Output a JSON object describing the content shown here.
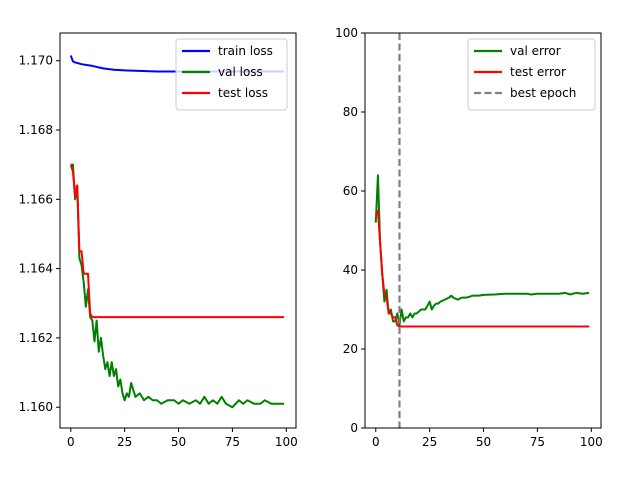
{
  "chart_data": [
    {
      "type": "line",
      "title": "",
      "xlabel": "",
      "ylabel": "",
      "xlim": [
        -5,
        104.5
      ],
      "ylim": [
        1.1594,
        1.1708
      ],
      "xticks": [
        0,
        25,
        50,
        75,
        100
      ],
      "yticks": [
        1.16,
        1.162,
        1.164,
        1.166,
        1.168,
        1.17
      ],
      "ytick_labels": [
        "1.160",
        "1.162",
        "1.164",
        "1.166",
        "1.168",
        "1.170"
      ],
      "legend_position": "top-right",
      "grid": false,
      "series": [
        {
          "name": "train loss",
          "color": "#0000ff",
          "points": [
            [
              0,
              1.17015
            ],
            [
              1,
              1.16998
            ],
            [
              2,
              1.16995
            ],
            [
              5,
              1.1699
            ],
            [
              10,
              1.16985
            ],
            [
              15,
              1.16978
            ],
            [
              20,
              1.16974
            ],
            [
              25,
              1.16972
            ],
            [
              30,
              1.16971
            ],
            [
              35,
              1.1697
            ],
            [
              40,
              1.16969
            ],
            [
              50,
              1.16969
            ],
            [
              60,
              1.16969
            ],
            [
              75,
              1.16969
            ],
            [
              99,
              1.16969
            ]
          ]
        },
        {
          "name": "val loss",
          "color": "#008000",
          "points": [
            [
              0,
              1.167
            ],
            [
              1,
              1.167
            ],
            [
              2,
              1.166
            ],
            [
              3,
              1.1664
            ],
            [
              4,
              1.1643
            ],
            [
              5,
              1.1641
            ],
            [
              6,
              1.1636
            ],
            [
              7,
              1.1629
            ],
            [
              8,
              1.1634
            ],
            [
              9,
              1.1626
            ],
            [
              10,
              1.1625
            ],
            [
              11,
              1.1619
            ],
            [
              12,
              1.1625
            ],
            [
              13,
              1.1616
            ],
            [
              14,
              1.162
            ],
            [
              15,
              1.1615
            ],
            [
              16,
              1.1611
            ],
            [
              17,
              1.1613
            ],
            [
              18,
              1.1609
            ],
            [
              19,
              1.1613
            ],
            [
              20,
              1.1609
            ],
            [
              21,
              1.1611
            ],
            [
              22,
              1.1606
            ],
            [
              23,
              1.1608
            ],
            [
              24,
              1.1604
            ],
            [
              25,
              1.1602
            ],
            [
              26,
              1.1604
            ],
            [
              27,
              1.1603
            ],
            [
              28,
              1.1607
            ],
            [
              29,
              1.1605
            ],
            [
              30,
              1.1603
            ],
            [
              32,
              1.1604
            ],
            [
              34,
              1.1602
            ],
            [
              36,
              1.1603
            ],
            [
              38,
              1.1602
            ],
            [
              40,
              1.1602
            ],
            [
              42,
              1.1601
            ],
            [
              45,
              1.1602
            ],
            [
              48,
              1.1602
            ],
            [
              50,
              1.1601
            ],
            [
              52,
              1.1602
            ],
            [
              55,
              1.1601
            ],
            [
              58,
              1.1602
            ],
            [
              60,
              1.1601
            ],
            [
              62,
              1.1603
            ],
            [
              64,
              1.1601
            ],
            [
              66,
              1.1602
            ],
            [
              68,
              1.1601
            ],
            [
              70,
              1.1603
            ],
            [
              72,
              1.1601
            ],
            [
              75,
              1.16
            ],
            [
              78,
              1.1602
            ],
            [
              80,
              1.1601
            ],
            [
              82,
              1.1602
            ],
            [
              85,
              1.1601
            ],
            [
              88,
              1.1601
            ],
            [
              90,
              1.1602
            ],
            [
              93,
              1.1601
            ],
            [
              96,
              1.1601
            ],
            [
              99,
              1.1601
            ]
          ]
        },
        {
          "name": "test loss",
          "color": "#ff0000",
          "points": [
            [
              0,
              1.167
            ],
            [
              1,
              1.1668
            ],
            [
              2,
              1.1661
            ],
            [
              3,
              1.1664
            ],
            [
              4,
              1.1645
            ],
            [
              5,
              1.1645
            ],
            [
              6,
              1.16385
            ],
            [
              8,
              1.16385
            ],
            [
              9,
              1.1627
            ],
            [
              10,
              1.1626
            ],
            [
              99,
              1.1626
            ]
          ]
        }
      ]
    },
    {
      "type": "line",
      "title": "",
      "xlabel": "",
      "ylabel": "",
      "xlim": [
        -5,
        104.5
      ],
      "ylim": [
        0,
        100
      ],
      "xticks": [
        0,
        25,
        50,
        75,
        100
      ],
      "yticks": [
        0,
        20,
        40,
        60,
        80,
        100
      ],
      "ytick_labels": [
        "0",
        "20",
        "40",
        "60",
        "80",
        "100"
      ],
      "legend_position": "top-right",
      "grid": false,
      "vline": {
        "x": 11,
        "name": "best epoch",
        "color": "#808080",
        "dash": true
      },
      "series": [
        {
          "name": "val error",
          "color": "#008000",
          "points": [
            [
              0,
              52
            ],
            [
              1,
              64
            ],
            [
              2,
              47
            ],
            [
              3,
              39
            ],
            [
              4,
              32
            ],
            [
              5,
              35
            ],
            [
              6,
              29
            ],
            [
              7,
              30
            ],
            [
              8,
              27
            ],
            [
              9,
              27
            ],
            [
              10,
              29
            ],
            [
              11,
              26
            ],
            [
              12,
              30
            ],
            [
              13,
              27
            ],
            [
              14,
              28
            ],
            [
              15,
              28
            ],
            [
              16,
              29
            ],
            [
              17,
              28
            ],
            [
              18,
              29
            ],
            [
              19,
              29
            ],
            [
              20,
              29.5
            ],
            [
              21,
              30
            ],
            [
              22,
              30
            ],
            [
              23,
              30
            ],
            [
              24,
              31
            ],
            [
              25,
              32
            ],
            [
              26,
              30
            ],
            [
              27,
              31
            ],
            [
              28,
              31.5
            ],
            [
              29,
              31.5
            ],
            [
              30,
              32
            ],
            [
              32,
              32.5
            ],
            [
              34,
              33
            ],
            [
              35,
              33.5
            ],
            [
              36,
              33
            ],
            [
              38,
              32.5
            ],
            [
              40,
              33
            ],
            [
              42,
              33
            ],
            [
              45,
              33.5
            ],
            [
              48,
              33.5
            ],
            [
              50,
              33.7
            ],
            [
              55,
              33.8
            ],
            [
              60,
              34
            ],
            [
              65,
              34
            ],
            [
              70,
              34
            ],
            [
              72,
              33.8
            ],
            [
              75,
              34
            ],
            [
              80,
              34
            ],
            [
              85,
              34
            ],
            [
              88,
              34.2
            ],
            [
              90,
              33.8
            ],
            [
              93,
              34.2
            ],
            [
              96,
              34
            ],
            [
              99,
              34.2
            ]
          ]
        },
        {
          "name": "test error",
          "color": "#ff0000",
          "points": [
            [
              0,
              54
            ],
            [
              1,
              55
            ],
            [
              2,
              47
            ],
            [
              3,
              39
            ],
            [
              4,
              34
            ],
            [
              5,
              33
            ],
            [
              6,
              29
            ],
            [
              7,
              29
            ],
            [
              8,
              28
            ],
            [
              9,
              28
            ],
            [
              10,
              26
            ],
            [
              11,
              25.7
            ],
            [
              99,
              25.7
            ]
          ]
        }
      ]
    }
  ]
}
